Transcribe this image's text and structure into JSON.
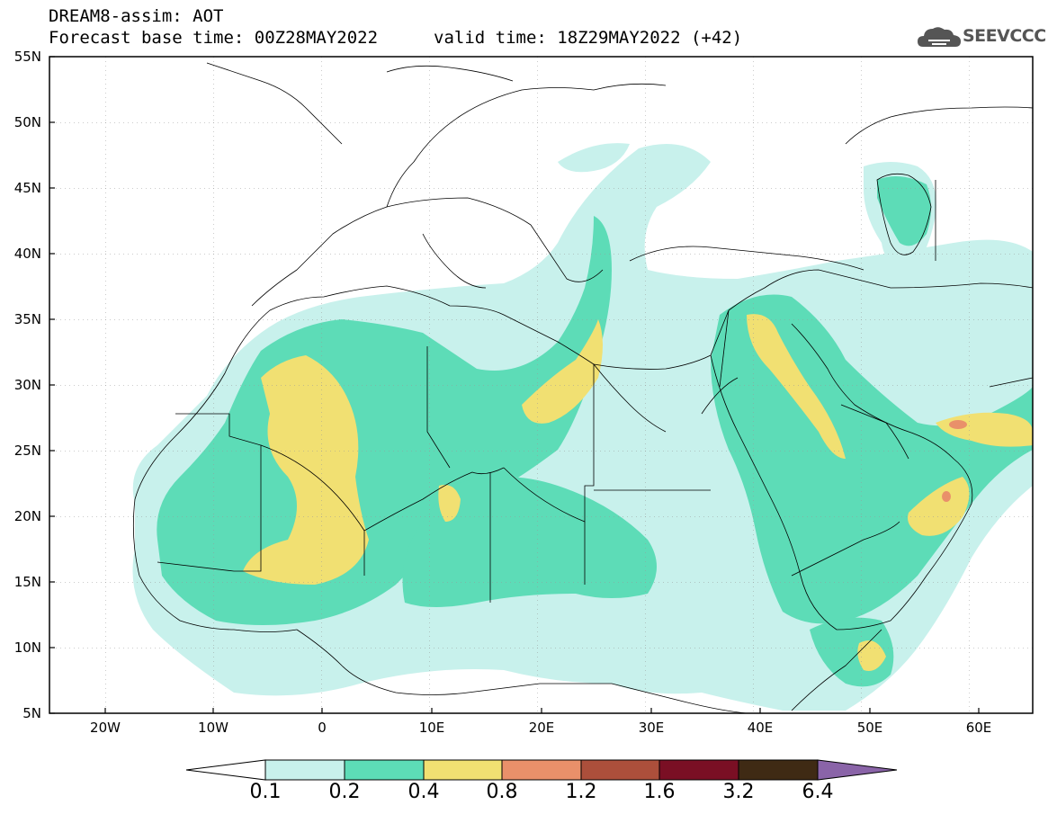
{
  "header": {
    "title": "DREAM8-assim: AOT",
    "base_time": "Forecast base time: 00Z28MAY2022",
    "valid_time": "valid time: 18Z29MAY2022 (+42)"
  },
  "logo": {
    "text": "SEEVCCC",
    "icon": "cloud-icon"
  },
  "map": {
    "lat_labels": [
      "55N",
      "50N",
      "45N",
      "40N",
      "35N",
      "30N",
      "25N",
      "20N",
      "15N",
      "10N",
      "5N"
    ],
    "lon_labels": [
      "20W",
      "10W",
      "0",
      "10E",
      "20E",
      "30E",
      "40E",
      "50E",
      "60E"
    ]
  },
  "colorbar": {
    "labels": [
      "0.1",
      "0.2",
      "0.4",
      "0.8",
      "1.2",
      "1.6",
      "3.2",
      "6.4"
    ],
    "colors": [
      "#c8f1ec",
      "#5ddcb7",
      "#f1e072",
      "#e9906a",
      "#ac4f3b",
      "#7a0f24",
      "#3f2a14",
      "#8a64a8"
    ]
  }
}
